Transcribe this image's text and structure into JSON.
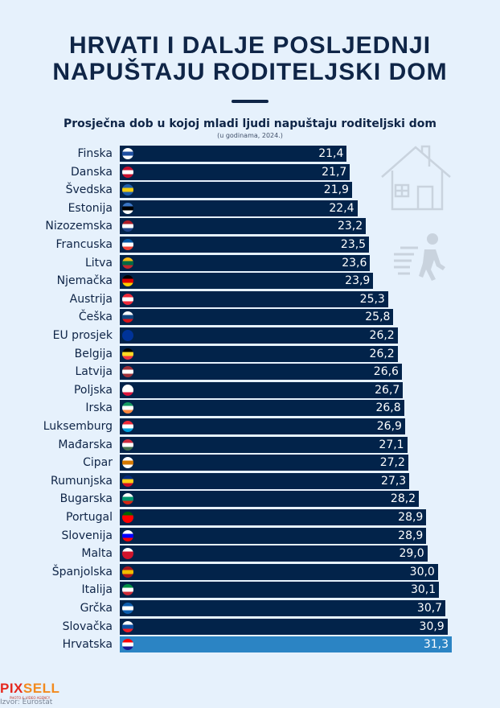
{
  "title_line1": "HRVATI I DALJE POSLJEDNJI",
  "title_line2": "NAPUŠTAJU RODITELJSKI DOM",
  "colors": {
    "bar": "#02234a",
    "highlight": "#2b84c4",
    "text": "#0f2547",
    "background": "#e6f1fc"
  },
  "decor_icons": [
    "house-icon",
    "walking-person-icon"
  ],
  "chart_data": {
    "type": "bar",
    "orientation": "horizontal",
    "title": "Prosječna dob u kojoj mladi ljudi napuštaju roditeljski dom",
    "subtitle": "(u godinama, 2024.)",
    "categories": [
      "Finska",
      "Danska",
      "Švedska",
      "Estonija",
      "Nizozemska",
      "Francuska",
      "Litva",
      "Njemačka",
      "Austrija",
      "Češka",
      "EU prosjek",
      "Belgija",
      "Latvija",
      "Poljska",
      "Irska",
      "Luksemburg",
      "Mađarska",
      "Cipar",
      "Rumunjska",
      "Bugarska",
      "Portugal",
      "Slovenija",
      "Malta",
      "Španjolska",
      "Italija",
      "Grčka",
      "Slovačka",
      "Hrvatska"
    ],
    "values": [
      21.4,
      21.7,
      21.9,
      22.4,
      23.2,
      23.5,
      23.6,
      23.9,
      25.3,
      25.8,
      26.2,
      26.2,
      26.6,
      26.7,
      26.8,
      26.9,
      27.1,
      27.2,
      27.3,
      28.2,
      28.9,
      28.9,
      29.0,
      30.0,
      30.1,
      30.7,
      30.9,
      31.3
    ],
    "value_labels": [
      "21,4",
      "21,7",
      "21,9",
      "22,4",
      "23,2",
      "23,5",
      "23,6",
      "23,9",
      "25,3",
      "25,8",
      "26,2",
      "26,2",
      "26,6",
      "26,7",
      "26,8",
      "26,9",
      "27,1",
      "27,2",
      "27,3",
      "28,2",
      "28,9",
      "28,9",
      "29,0",
      "30,0",
      "30,1",
      "30,7",
      "30,9",
      "31,3"
    ],
    "highlight": "Hrvatska",
    "xlim": [
      0,
      31.3
    ],
    "grid": false,
    "flags": [
      [
        "#ffffff",
        "#1f4fa0",
        "#ffffff"
      ],
      [
        "#c8102e",
        "#ffffff",
        "#c8102e"
      ],
      [
        "#1f5fae",
        "#f3cd10",
        "#1f5fae"
      ],
      [
        "#3a75c4",
        "#000000",
        "#ffffff"
      ],
      [
        "#ae1c28",
        "#ffffff",
        "#21468b"
      ],
      [
        "#0055a4",
        "#ffffff",
        "#ef4135"
      ],
      [
        "#fdb913",
        "#006a44",
        "#c1272d"
      ],
      [
        "#000000",
        "#dd0000",
        "#ffce00"
      ],
      [
        "#ed2939",
        "#ffffff",
        "#ed2939"
      ],
      [
        "#ffffff",
        "#11457e",
        "#d7141a"
      ],
      [
        "#003399",
        "#003399",
        "#003399"
      ],
      [
        "#000000",
        "#fdda24",
        "#ef3340"
      ],
      [
        "#9e3039",
        "#ffffff",
        "#9e3039"
      ],
      [
        "#ffffff",
        "#ffffff",
        "#dc143c"
      ],
      [
        "#169b62",
        "#ffffff",
        "#ff883e"
      ],
      [
        "#ed2939",
        "#ffffff",
        "#00a1de"
      ],
      [
        "#cd2a3e",
        "#ffffff",
        "#436f4d"
      ],
      [
        "#ffffff",
        "#d57800",
        "#ffffff"
      ],
      [
        "#002b7f",
        "#fcd116",
        "#ce1126"
      ],
      [
        "#ffffff",
        "#00966e",
        "#d62612"
      ],
      [
        "#006600",
        "#ff0000",
        "#ff0000"
      ],
      [
        "#ffffff",
        "#0000ff",
        "#ff0000"
      ],
      [
        "#ffffff",
        "#cf142b",
        "#cf142b"
      ],
      [
        "#aa151b",
        "#f1bf00",
        "#aa151b"
      ],
      [
        "#009246",
        "#ffffff",
        "#ce2b37"
      ],
      [
        "#0d5eaf",
        "#ffffff",
        "#0d5eaf"
      ],
      [
        "#ffffff",
        "#0b4ea2",
        "#ee1c25"
      ],
      [
        "#ff0000",
        "#ffffff",
        "#171796"
      ]
    ]
  },
  "footer": {
    "logo": "PIXSELL",
    "logo_part1": "PIX",
    "logo_part2": "SELL",
    "tagline": "PHOTO & VIDEO AGENCY",
    "source": "Izvor: Eurostat"
  }
}
